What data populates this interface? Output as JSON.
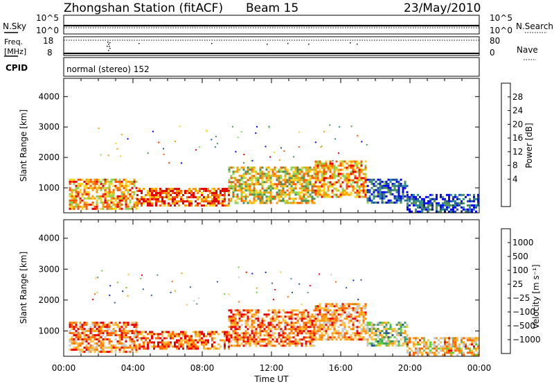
{
  "header": {
    "title": "Zhongshan Station (fitACF)",
    "beam": "Beam 15",
    "date": "23/May/2010"
  },
  "strips": {
    "nsky": {
      "left_label": "N.Sky",
      "left_ticks": [
        "10^5",
        "10^0"
      ],
      "right_ticks": [
        "10^5",
        "10^0"
      ],
      "right_label": "N.Search"
    },
    "freq": {
      "left_label": "Freq.",
      "left_unit": "[MHz]",
      "left_ticks": [
        "18",
        "8"
      ],
      "right_ticks": [
        "80",
        "0"
      ],
      "right_label": "Nave"
    },
    "cpid": {
      "label": "CPID",
      "text": "normal (stereo) 152"
    }
  },
  "chart_data": [
    {
      "type": "heatmap",
      "name": "power",
      "ylabel": "Slant Range [km]",
      "yticks": [
        1000,
        2000,
        3000,
        4000
      ],
      "ylim": [
        180,
        4600
      ],
      "xlim": [
        0,
        24
      ],
      "colorbar_label": "Power [dB]",
      "colorbar_ticks": [
        "28",
        "24",
        "20",
        "16",
        "12",
        "8",
        "4"
      ],
      "colors": [
        "#0000ff",
        "#1c4fa3",
        "#2a8a8a",
        "#4f8f55",
        "#8fd24f",
        "#ffd21a",
        "#ff9a00",
        "#ff5a00",
        "#e80000"
      ],
      "blobs": [
        {
          "t0": 0.3,
          "t1": 4.2,
          "r0": 300,
          "r1": 1300,
          "level": 0.7
        },
        {
          "t0": 4.2,
          "t1": 9.5,
          "r0": 400,
          "r1": 1000,
          "level": 0.85
        },
        {
          "t0": 9.5,
          "t1": 14.5,
          "r0": 500,
          "r1": 1700,
          "level": 0.6
        },
        {
          "t0": 14.5,
          "t1": 17.5,
          "r0": 700,
          "r1": 1900,
          "level": 0.72
        },
        {
          "t0": 17.5,
          "t1": 19.8,
          "r0": 500,
          "r1": 1300,
          "level": 0.22
        },
        {
          "t0": 19.8,
          "t1": 24,
          "r0": 200,
          "r1": 800,
          "level": 0.18
        }
      ]
    },
    {
      "type": "heatmap",
      "name": "velocity",
      "ylabel": "Slant Range [km]",
      "xlabel": "Time UT",
      "yticks": [
        1000,
        2000,
        3000,
        4000
      ],
      "ylim": [
        180,
        4600
      ],
      "xlim": [
        0,
        24
      ],
      "xtick_labels": [
        "00:00",
        "04:00",
        "08:00",
        "12:00",
        "16:00",
        "20:00",
        "00:00"
      ],
      "colorbar_label": "Velocity [m s⁻¹]",
      "colorbar_ticks": [
        "1000",
        "500",
        "100",
        "25",
        "−25",
        "−100",
        "−500",
        "−1000"
      ],
      "colors": [
        "#ee0000",
        "#ff6a00",
        "#ff9a10",
        "#ffc040",
        "#c8c8c8",
        "#66cc33",
        "#3e9a6a",
        "#2a5a9a",
        "#1020c8"
      ],
      "blobs": [
        {
          "t0": 0.3,
          "t1": 4.2,
          "r0": 300,
          "r1": 1300,
          "level": 0.25
        },
        {
          "t0": 4.2,
          "t1": 9.5,
          "r0": 400,
          "r1": 1000,
          "level": 0.18
        },
        {
          "t0": 9.5,
          "t1": 14.5,
          "r0": 500,
          "r1": 1700,
          "level": 0.22
        },
        {
          "t0": 14.5,
          "t1": 17.5,
          "r0": 700,
          "r1": 1900,
          "level": 0.28
        },
        {
          "t0": 17.5,
          "t1": 19.8,
          "r0": 500,
          "r1": 1300,
          "level": 0.55
        },
        {
          "t0": 19.8,
          "t1": 24,
          "r0": 200,
          "r1": 800,
          "level": 0.35
        }
      ]
    }
  ]
}
